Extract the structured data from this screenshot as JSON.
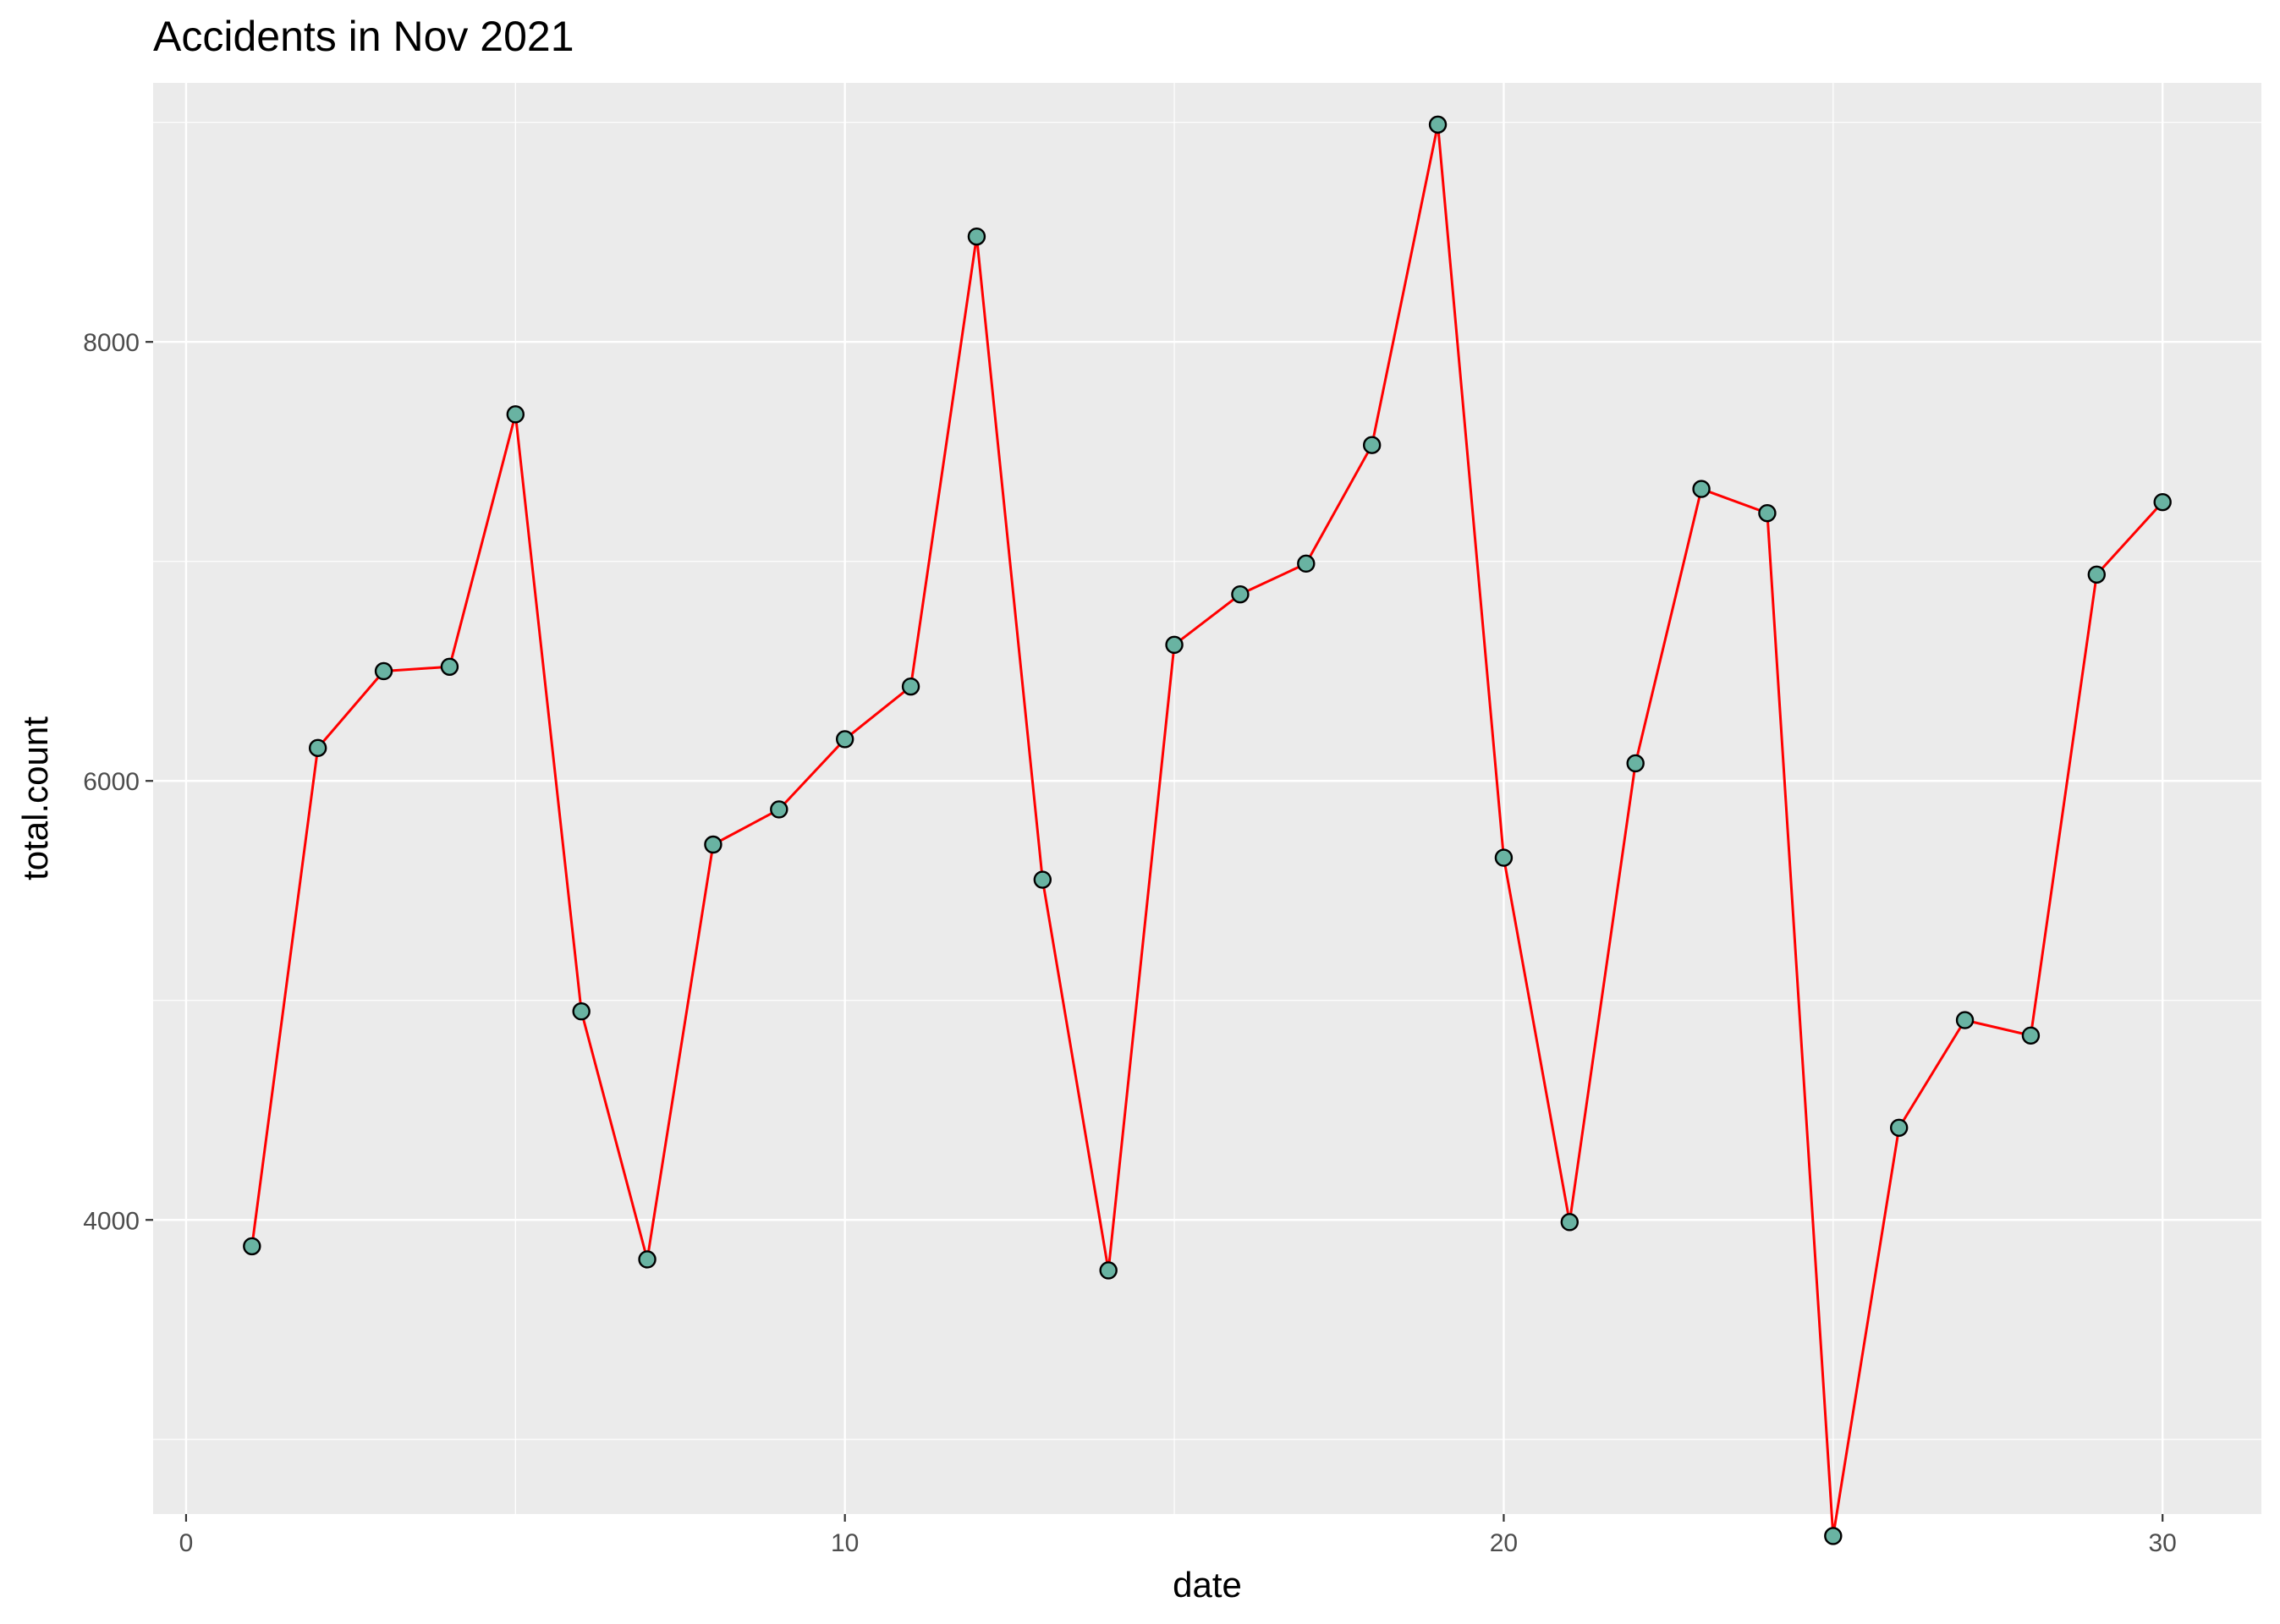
{
  "chart_data": {
    "type": "line",
    "title": "Accidents in Nov 2021",
    "xlabel": "date",
    "ylabel": "total.count",
    "xlim": [
      -0.5,
      31.5
    ],
    "ylim": [
      2660,
      9180
    ],
    "x_ticks": [
      0,
      10,
      20,
      30
    ],
    "x_minor_ticks": [
      5,
      15,
      25
    ],
    "y_ticks": [
      4000,
      6000,
      8000
    ],
    "y_minor_ticks": [
      3000,
      5000,
      7000,
      9000
    ],
    "grid": true,
    "legend": "none",
    "series": [
      {
        "x": [
          1,
          2,
          3,
          4,
          5,
          6,
          7,
          8,
          9,
          10,
          11,
          12,
          13,
          14,
          15,
          16,
          17,
          18,
          19,
          20,
          21,
          22,
          23,
          24,
          25,
          26,
          27,
          28,
          29,
          30
        ],
        "y": [
          3880,
          6150,
          6500,
          6520,
          7670,
          4950,
          3820,
          5710,
          5870,
          6190,
          6430,
          8480,
          5550,
          3770,
          6620,
          6850,
          6990,
          7530,
          8990,
          5650,
          3990,
          6080,
          7330,
          7220,
          2560,
          4420,
          4910,
          4840,
          6940,
          7270
        ]
      }
    ],
    "colors": {
      "line": "#FF0000",
      "point_fill": "#69B3A2",
      "point_stroke": "#000000",
      "panel_background": "#EBEBEB",
      "grid": "#FFFFFF",
      "tick_text": "#4D4D4D",
      "tick_mark": "#333333"
    }
  }
}
